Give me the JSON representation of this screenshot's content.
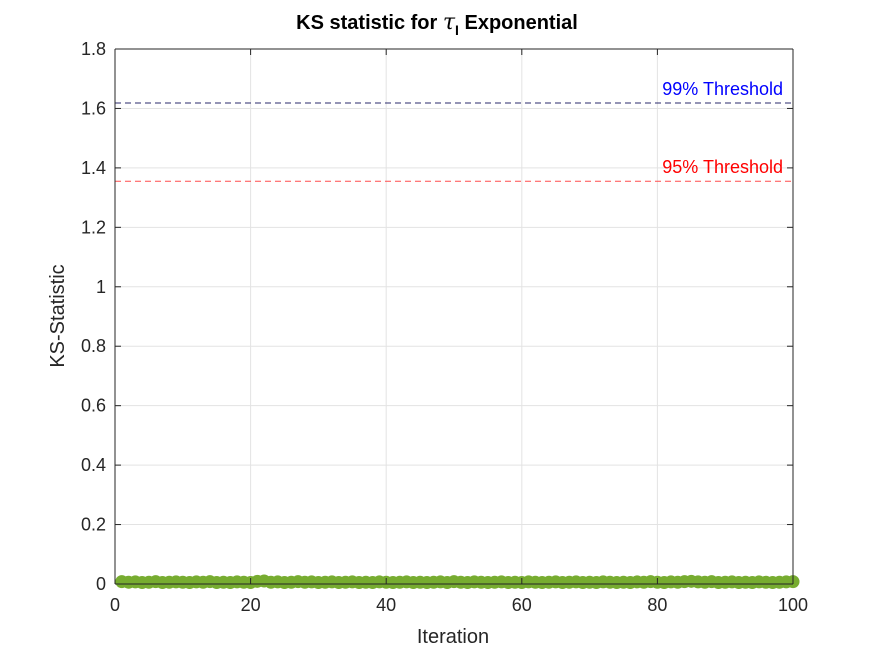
{
  "chart_data": {
    "type": "scatter",
    "title": {
      "prefix": "KS statistic for ",
      "symbol": "τ",
      "subscript": "I",
      "suffix": " Exponential"
    },
    "xlabel": "Iteration",
    "ylabel": "KS-Statistic",
    "xlim": [
      0,
      100
    ],
    "ylim": [
      0,
      1.8
    ],
    "x_ticks": [
      0,
      20,
      40,
      60,
      80,
      100
    ],
    "x_tick_labels": [
      "0",
      "20",
      "40",
      "60",
      "80",
      "100"
    ],
    "y_ticks": [
      0,
      0.2,
      0.4,
      0.6,
      0.8,
      1,
      1.2,
      1.4,
      1.6,
      1.8
    ],
    "y_tick_labels": [
      "0",
      "0.2",
      "0.4",
      "0.6",
      "0.8",
      "1",
      "1.2",
      "1.4",
      "1.6",
      "1.8"
    ],
    "grid": true,
    "series": [
      {
        "color": "#77ac30",
        "marker": "filled-circle",
        "x": [
          1,
          2,
          3,
          4,
          5,
          6,
          7,
          8,
          9,
          10,
          11,
          12,
          13,
          14,
          15,
          16,
          17,
          18,
          19,
          20,
          21,
          22,
          23,
          24,
          25,
          26,
          27,
          28,
          29,
          30,
          31,
          32,
          33,
          34,
          35,
          36,
          37,
          38,
          39,
          40,
          41,
          42,
          43,
          44,
          45,
          46,
          47,
          48,
          49,
          50,
          51,
          52,
          53,
          54,
          55,
          56,
          57,
          58,
          59,
          60,
          61,
          62,
          63,
          64,
          65,
          66,
          67,
          68,
          69,
          70,
          71,
          72,
          73,
          74,
          75,
          76,
          77,
          78,
          79,
          80,
          81,
          82,
          83,
          84,
          85,
          86,
          87,
          88,
          89,
          90,
          91,
          92,
          93,
          94,
          95,
          96,
          97,
          98,
          99,
          100
        ],
        "y": [
          0.008,
          0.006,
          0.007,
          0.005,
          0.006,
          0.008,
          0.005,
          0.006,
          0.007,
          0.006,
          0.005,
          0.007,
          0.006,
          0.008,
          0.005,
          0.006,
          0.005,
          0.007,
          0.006,
          0.005,
          0.009,
          0.01,
          0.006,
          0.007,
          0.005,
          0.006,
          0.008,
          0.006,
          0.007,
          0.005,
          0.006,
          0.007,
          0.005,
          0.006,
          0.007,
          0.005,
          0.006,
          0.005,
          0.007,
          0.006,
          0.005,
          0.006,
          0.007,
          0.005,
          0.006,
          0.005,
          0.006,
          0.007,
          0.005,
          0.008,
          0.006,
          0.005,
          0.007,
          0.006,
          0.005,
          0.006,
          0.007,
          0.005,
          0.006,
          0.005,
          0.007,
          0.006,
          0.005,
          0.006,
          0.007,
          0.005,
          0.006,
          0.007,
          0.005,
          0.006,
          0.005,
          0.007,
          0.006,
          0.005,
          0.006,
          0.005,
          0.007,
          0.006,
          0.008,
          0.006,
          0.005,
          0.007,
          0.006,
          0.008,
          0.009,
          0.007,
          0.006,
          0.008,
          0.005,
          0.006,
          0.007,
          0.005,
          0.006,
          0.005,
          0.007,
          0.006,
          0.005,
          0.006,
          0.007,
          0.008
        ]
      }
    ],
    "thresholds": [
      {
        "label": "99% Threshold",
        "value": 1.6183,
        "color": "#0000ff",
        "line_color": "#29296b"
      },
      {
        "label": "95% Threshold",
        "value": 1.3551,
        "color": "#ff0000",
        "line_color": "#ff4d4d"
      }
    ]
  }
}
